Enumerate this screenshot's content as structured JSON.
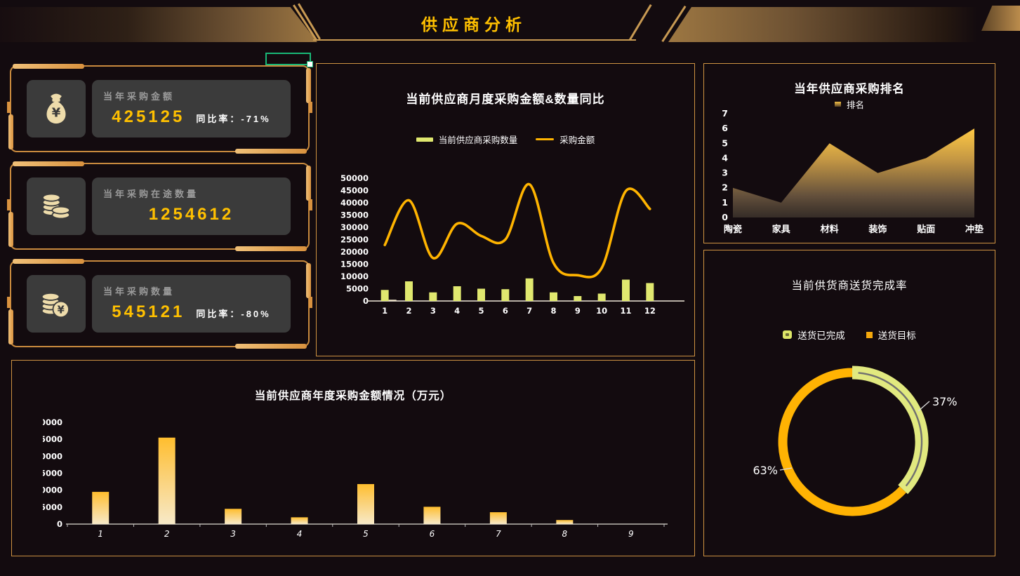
{
  "header": {
    "title": "供应商分析"
  },
  "kpi_cards": [
    {
      "icon": "money-bag-icon",
      "label": "当年采购金额",
      "value": "425125",
      "ratio": "同比率：-71%"
    },
    {
      "icon": "coin-stacks-icon",
      "label": "当年采购在途数量",
      "value": "1254612",
      "ratio": ""
    },
    {
      "icon": "coins-yuan-icon",
      "label": "当年采购数量",
      "value": "545121",
      "ratio": "同比率：-80%"
    }
  ],
  "colors": {
    "background": "#130b0f",
    "panel_border": "#cf9342",
    "title_gold": "#ffc000",
    "bar_green": "#e0e86f",
    "line_orange": "#ffb400",
    "area_gold": "#f6c041",
    "donut_green": "#e1e97f",
    "donut_orange": "#ffb303",
    "year_bar_top": "#ffbe2e",
    "year_bar_bottom": "#f7e9c8",
    "selection_green": "#19b877"
  },
  "chart_data": [
    {
      "id": "monthly-combo",
      "type": "combo",
      "title": "当前供应商月度采购金额&数量同比",
      "categories": [
        "1",
        "2",
        "3",
        "4",
        "5",
        "6",
        "7",
        "8",
        "9",
        "10",
        "11",
        "12"
      ],
      "series": [
        {
          "name": "当前供应商采购数量",
          "type": "bar",
          "color": "#e0e86f",
          "values": [
            4500,
            8000,
            3500,
            6000,
            5000,
            4800,
            9200,
            3500,
            2000,
            3000,
            8700,
            7300
          ]
        },
        {
          "name": "采购金额",
          "type": "line",
          "color": "#ffb400",
          "values": [
            22800,
            41000,
            17500,
            31500,
            26500,
            25000,
            47500,
            15500,
            10500,
            13500,
            44800,
            37500
          ]
        }
      ],
      "tiny_bar": {
        "category": "1",
        "value": 500,
        "color": "#f2e8cc"
      },
      "ylim": [
        0,
        50000
      ],
      "ytick_step": 5000,
      "legend_position": "top",
      "grid": false
    },
    {
      "id": "supplier-ranking",
      "type": "area",
      "title": "当年供应商采购排名",
      "legend": [
        "排名"
      ],
      "categories": [
        "陶瓷",
        "家具",
        "材料",
        "装饰",
        "贴面",
        "冲垫"
      ],
      "values": [
        2,
        1,
        5,
        3,
        4,
        6
      ],
      "ylim": [
        0,
        7
      ],
      "ytick_step": 1,
      "grid": false
    },
    {
      "id": "delivery-completion",
      "type": "pie",
      "donut": true,
      "title": "当前供货商送货完成率",
      "slices": [
        {
          "name": "送货已完成",
          "value": 37,
          "label": "37%",
          "color": "#e1e97f"
        },
        {
          "name": "送货目标",
          "value": 63,
          "label": "63%",
          "color": "#ffb303"
        }
      ],
      "legend_position": "top"
    },
    {
      "id": "yearly-amount",
      "type": "bar",
      "title": "当前供应商年度采购金额情况（万元）",
      "categories": [
        "1",
        "2",
        "3",
        "4",
        "5",
        "6",
        "7",
        "8",
        "9"
      ],
      "values": [
        9500,
        25500,
        4500,
        2000,
        11800,
        5100,
        3500,
        1200,
        0
      ],
      "ylim": [
        0,
        30000
      ],
      "ytick_step": 5000,
      "grid": false
    }
  ]
}
